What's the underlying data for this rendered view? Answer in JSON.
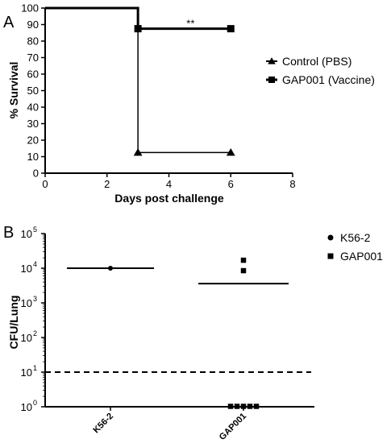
{
  "figure": {
    "panel_a_label": "A",
    "panel_b_label": "B"
  },
  "chart_data": [
    {
      "panel": "A",
      "type": "line",
      "step": true,
      "xlabel": "Days post challenge",
      "ylabel": "% Survival",
      "xlim": [
        0,
        8
      ],
      "ylim": [
        0,
        100
      ],
      "xticks": [
        0,
        2,
        4,
        6,
        8
      ],
      "yticks": [
        0,
        10,
        20,
        30,
        40,
        50,
        60,
        70,
        80,
        90,
        100
      ],
      "grid": false,
      "legend_position": "right",
      "series": [
        {
          "name": "Control (PBS)",
          "marker": "triangle",
          "x": [
            0,
            3,
            3,
            6
          ],
          "y": [
            100,
            100,
            12.5,
            12.5
          ],
          "marker_x": [
            3,
            6
          ],
          "marker_y": [
            12.5,
            12.5
          ]
        },
        {
          "name": "GAP001 (Vaccine)",
          "marker": "square",
          "x": [
            0,
            3,
            3,
            6
          ],
          "y": [
            100,
            100,
            87.5,
            87.5
          ],
          "marker_x": [
            3,
            6
          ],
          "marker_y": [
            87.5,
            87.5
          ]
        }
      ],
      "annotations": [
        {
          "text": "**",
          "x": 4.7,
          "y": 87.5
        }
      ]
    },
    {
      "panel": "B",
      "type": "scatter",
      "ylabel": "CFU/Lung",
      "yscale": "log",
      "ylim": [
        1,
        100000
      ],
      "yticks": [
        {
          "value": 1,
          "base": "10",
          "exp": "0"
        },
        {
          "value": 10,
          "base": "10",
          "exp": "1"
        },
        {
          "value": 100,
          "base": "10",
          "exp": "2"
        },
        {
          "value": 1000,
          "base": "10",
          "exp": "3"
        },
        {
          "value": 10000,
          "base": "10",
          "exp": "4"
        },
        {
          "value": 100000,
          "base": "10",
          "exp": "5"
        }
      ],
      "categories": [
        "K56-2",
        "GAP001"
      ],
      "detection_limit": 10,
      "legend_position": "top-right",
      "series": [
        {
          "name": "K56-2",
          "marker": "circle",
          "category": "K56-2",
          "values": [
            10000
          ],
          "mean": 10000
        },
        {
          "name": "GAP001",
          "marker": "square",
          "category": "GAP001",
          "values": [
            17000,
            8500,
            1,
            1,
            1,
            1,
            1
          ],
          "mean": 3600
        }
      ]
    }
  ]
}
